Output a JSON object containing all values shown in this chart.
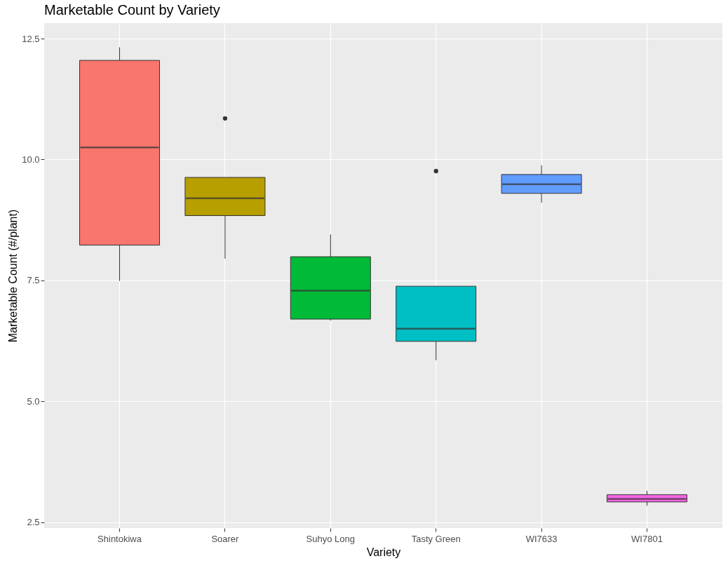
{
  "chart_data": {
    "type": "box",
    "title": "Marketable Count by Variety",
    "xlabel": "Variety",
    "ylabel": "Marketable Count (#/plant)",
    "categories": [
      "Shintokiwa",
      "Soarer",
      "Suhyo Long",
      "Tasty Green",
      "WI7633",
      "WI7801"
    ],
    "colors": [
      "#f8766d",
      "#b79f00",
      "#00ba38",
      "#00bfc4",
      "#619cff",
      "#f564e3"
    ],
    "boxes": [
      {
        "low": 7.49,
        "q1": 8.23,
        "median": 10.25,
        "q3": 12.05,
        "high": 12.32
      },
      {
        "low": 7.95,
        "q1": 8.84,
        "median": 9.2,
        "q3": 9.63,
        "high": 9.63,
        "outliers": [
          10.85
        ]
      },
      {
        "low": 6.67,
        "q1": 6.7,
        "median": 7.29,
        "q3": 7.99,
        "high": 8.45
      },
      {
        "low": 5.85,
        "q1": 6.24,
        "median": 6.5,
        "q3": 7.38,
        "high": 7.38,
        "outliers": [
          9.76
        ]
      },
      {
        "low": 9.11,
        "q1": 9.3,
        "median": 9.49,
        "q3": 9.69,
        "high": 9.88
      },
      {
        "low": 2.84,
        "q1": 2.92,
        "median": 2.98,
        "q3": 3.07,
        "high": 3.15
      }
    ],
    "ylim": [
      2.38,
      12.82
    ],
    "yticks": [
      {
        "value": 2.5,
        "label": "2.5"
      },
      {
        "value": 5,
        "label": "5.0"
      },
      {
        "value": 7.5,
        "label": "7.5"
      },
      {
        "value": 10,
        "label": "10.0"
      },
      {
        "value": 12.5,
        "label": "12.5"
      }
    ],
    "grid": true,
    "legend": false
  }
}
